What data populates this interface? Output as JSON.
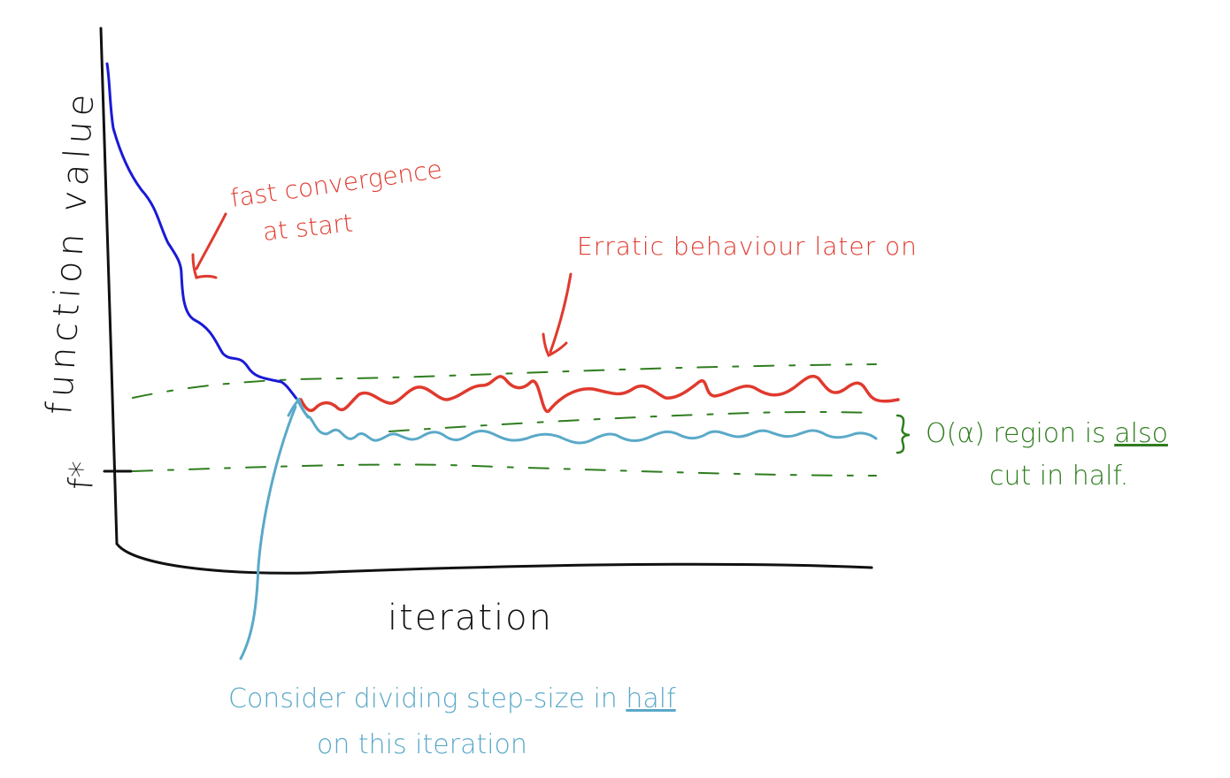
{
  "labels": {
    "y_axis": "function value",
    "x_axis": "iteration",
    "f_star": "f*"
  },
  "annotations": {
    "fast_line1": "fast convergence",
    "fast_line2": "at start",
    "erratic": "Erratic behaviour later on",
    "region_line1_a": "O(α) region is ",
    "region_line1_b": "also",
    "region_line2": "cut in half.",
    "consider_line1_a": "Consider dividing step-size in ",
    "consider_line1_b": "half",
    "consider_line2": "on this iteration"
  },
  "colors": {
    "axis": "#111111",
    "blue_curve": "#1a1ad6",
    "red_curve": "#e03a2e",
    "light_blue_curve": "#5aa9c8",
    "green_bounds": "#2e7d1e",
    "red_text": "#e03a2e",
    "green_text": "#2e7d1e",
    "light_blue_text": "#5aa9c8"
  }
}
